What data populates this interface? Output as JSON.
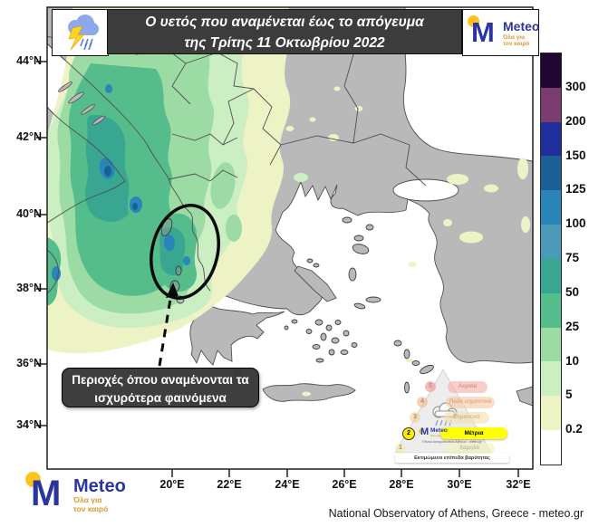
{
  "header": {
    "storm_icon": "storm-cloud-lightning-rain-icon",
    "title_line1": "Ο υετός που αναμένεται έως το απόγευμα",
    "title_line2": "της Τρίτης 11 Οκτωβρίου 2022"
  },
  "brand": {
    "name": "Meteo",
    "tagline_line1": "Όλα για",
    "tagline_line2": "τον καιρό",
    "blue": "#2a35a0",
    "yellow": "#ffc31e",
    "orange": "#dd9a33"
  },
  "map": {
    "lat_labels": [
      "44°N",
      "42°N",
      "40°N",
      "38°N",
      "36°N",
      "34°N"
    ],
    "lon_labels": [
      "20°E",
      "22°E",
      "24°E",
      "26°E",
      "28°E",
      "30°E",
      "32°E"
    ],
    "land_color": "#b9b9b9",
    "sea_color": "#ffffff",
    "annotation": {
      "line1": "Περιοχές όπου αναμένονται τα",
      "line2": "ισχυρότερα φαινόμενα"
    }
  },
  "colorbar": {
    "labels": [
      "300",
      "200",
      "150",
      "125",
      "100",
      "75",
      "50",
      "25",
      "10",
      "5",
      "0.2"
    ],
    "colors": [
      "#200733",
      "#7a3b6e",
      "#202d9c",
      "#1b6095",
      "#2a85ba",
      "#4a9ab8",
      "#38a690",
      "#55bd8c",
      "#9cdca4",
      "#cbeec3",
      "#eef3c6",
      "#ffffff"
    ]
  },
  "pyramid": {
    "caption": "Εκτιμώμενα επίπεδα βαρύτητας",
    "active_level": "2",
    "levels": [
      {
        "num": "5",
        "label": "Ακραία"
      },
      {
        "num": "4",
        "label": "Πολύ σημαντικά"
      },
      {
        "num": "3",
        "label": "Σημαντικά"
      },
      {
        "num": "2",
        "label": "Μέτρια"
      },
      {
        "num": "1",
        "label": "Χαμηλά"
      }
    ],
    "mini_logo_text": "Εθνικό Αστεροσκοπείο Αθηνών - meteo.gr"
  },
  "footer": {
    "attribution": "National Observatory of Athens, Greece - meteo.gr"
  }
}
